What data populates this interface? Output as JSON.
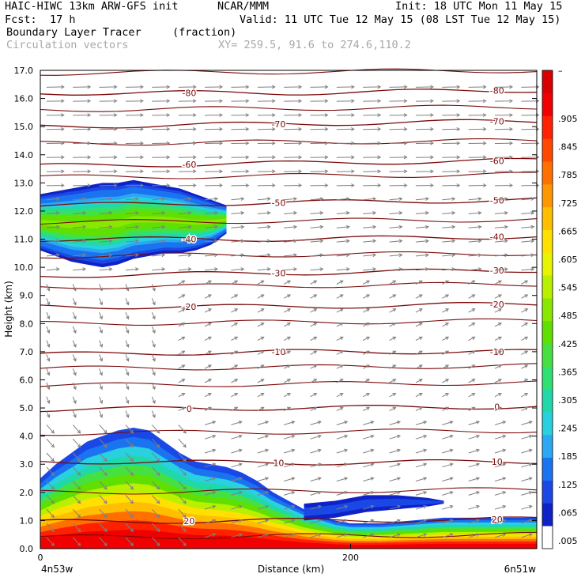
{
  "header": {
    "model": "HAIC-HIWC 13km ARW-GFS init",
    "org": "NCAR/MMM",
    "init": "Init: 18 UTC Mon 11 May 15",
    "fcst_label": "Fcst:",
    "fcst_value": "17 h",
    "valid": "Valid: 11 UTC Tue 12 May 15 (08 LST Tue 12 May 15)",
    "field": "Boundary Layer Tracer",
    "units": "(fraction)",
    "vectors": "Circulation vectors",
    "xy": "XY= 259.5, 91.6 to 274.6,110.2"
  },
  "chart_data": {
    "type": "heatmap",
    "title": "Boundary Layer Tracer",
    "xlabel": "Distance (km)",
    "ylabel": "Height (km)",
    "xlim": [
      0,
      320
    ],
    "ylim": [
      0,
      17
    ],
    "x_ticks": [
      {
        "value": 0,
        "label": "0"
      },
      {
        "value": 200,
        "label": "200"
      }
    ],
    "x_end_labels": {
      "left": "4n53w",
      "right": "6n51w"
    },
    "y_ticks": [
      "0.0",
      "1.0",
      "2.0",
      "3.0",
      "4.0",
      "5.0",
      "6.0",
      "7.0",
      "8.0",
      "9.0",
      "10.0",
      "11.0",
      "12.0",
      "13.0",
      "14.0",
      "15.0",
      "16.0",
      "17.0"
    ],
    "colorbar": {
      "labels": [
        ".005",
        ".065",
        ".125",
        ".185",
        ".245",
        ".305",
        ".365",
        ".425",
        ".485",
        ".545",
        ".605",
        ".665",
        ".725",
        ".785",
        ".845",
        ".905"
      ],
      "top_label": "–",
      "colors": [
        "#ffffff",
        "#0e22c8",
        "#1a48e6",
        "#1a74f0",
        "#2aa8f2",
        "#28d0e0",
        "#20d8a8",
        "#30e070",
        "#46e040",
        "#60e000",
        "#8ae800",
        "#b8f000",
        "#e6f400",
        "#ffe000",
        "#ffbe00",
        "#ff9800",
        "#ff7000",
        "#ff4800",
        "#ff2000",
        "#f00000",
        "#d80000"
      ]
    },
    "temperature_contours": [
      {
        "label": "-80",
        "heights": [
          16.2,
          16.2,
          16.3
        ]
      },
      {
        "label": "-70",
        "heights": [
          15.0,
          15.1,
          15.2
        ]
      },
      {
        "label": "-60",
        "heights": [
          13.6,
          13.7,
          13.8
        ]
      },
      {
        "label": "-50",
        "heights": [
          12.2,
          12.3,
          12.4
        ]
      },
      {
        "label": "-40",
        "heights": [
          11.0,
          11.0,
          11.1
        ]
      },
      {
        "label": "-30",
        "heights": [
          9.7,
          9.8,
          9.9
        ]
      },
      {
        "label": "-20",
        "heights": [
          8.6,
          8.6,
          8.7
        ]
      },
      {
        "label": "-10",
        "heights": [
          6.9,
          7.0,
          7.0
        ]
      },
      {
        "label": "0",
        "heights": [
          4.95,
          5.0,
          5.05
        ]
      },
      {
        "label": "10",
        "heights": [
          3.1,
          3.05,
          3.1
        ]
      },
      {
        "label": "20",
        "heights": [
          0.95,
          1.0,
          1.05
        ]
      }
    ],
    "unlabeled_contour_heights": [
      16.9,
      15.6,
      14.4,
      13.2,
      11.6,
      10.4,
      9.3,
      8.0,
      6.4,
      5.8,
      4.1,
      2.0,
      0.4
    ],
    "tracer_regions": [
      {
        "name": "lower",
        "x": [
          0,
          10,
          20,
          30,
          40,
          50,
          60,
          70,
          80,
          90,
          100,
          110,
          120,
          130,
          140,
          150,
          160,
          170,
          180,
          190,
          200,
          220,
          240,
          260,
          280,
          300,
          320
        ],
        "top": [
          2.5,
          3.0,
          3.4,
          3.8,
          4.0,
          4.2,
          4.3,
          4.2,
          3.8,
          3.4,
          3.1,
          3.0,
          2.9,
          2.7,
          2.4,
          2.0,
          1.7,
          1.4,
          1.2,
          1.0,
          0.9,
          0.9,
          1.0,
          1.1,
          1.1,
          1.1,
          1.1
        ],
        "peak_value": 0.95
      },
      {
        "name": "upper",
        "x": [
          0,
          10,
          20,
          30,
          40,
          50,
          60,
          70,
          80,
          90,
          100,
          110,
          120
        ],
        "top": [
          12.6,
          12.7,
          12.8,
          12.9,
          13.0,
          13.0,
          13.1,
          13.0,
          12.9,
          12.8,
          12.6,
          12.4,
          12.2
        ],
        "bottom": [
          10.6,
          10.4,
          10.2,
          10.1,
          10.0,
          10.1,
          10.3,
          10.4,
          10.5,
          10.5,
          10.6,
          10.8,
          11.2
        ],
        "peak_value": 0.5
      },
      {
        "name": "shelf",
        "x": [
          170,
          190,
          210,
          230,
          250,
          260
        ],
        "top": [
          1.6,
          1.7,
          1.9,
          1.9,
          1.8,
          1.7
        ],
        "bottom": [
          1.0,
          1.1,
          1.3,
          1.4,
          1.5,
          1.6
        ],
        "peak_value": 0.1
      }
    ]
  }
}
